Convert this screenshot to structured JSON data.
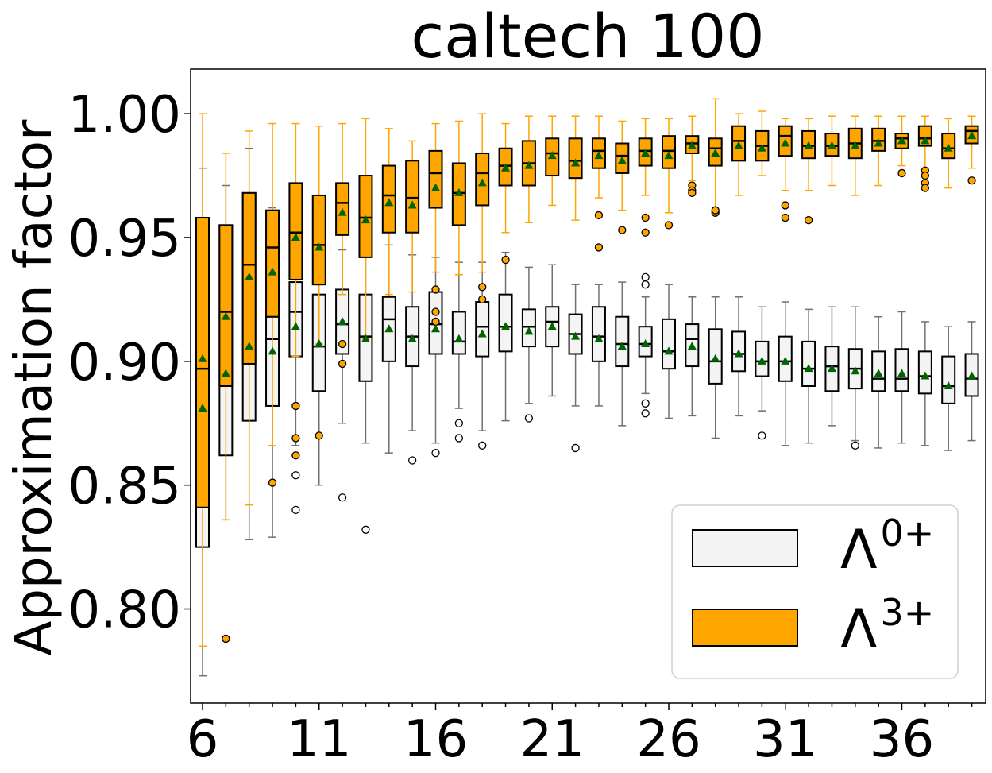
{
  "chart_data": {
    "type": "box",
    "title": "caltech 100",
    "xlabel": "",
    "ylabel": "Approximation factor",
    "ylim": [
      0.762,
      1.018
    ],
    "yticks": [
      0.8,
      0.85,
      0.9,
      0.95,
      1.0
    ],
    "ytick_labels": [
      "0.80",
      "0.85",
      "0.90",
      "0.95",
      "1.00"
    ],
    "x": [
      6,
      7,
      8,
      9,
      10,
      11,
      12,
      13,
      14,
      15,
      16,
      17,
      18,
      19,
      20,
      21,
      22,
      23,
      24,
      25,
      26,
      27,
      28,
      29,
      30,
      31,
      32,
      33,
      34,
      35,
      36,
      37,
      38,
      39
    ],
    "xticks": [
      6,
      11,
      16,
      21,
      26,
      31,
      36
    ],
    "xtick_labels": [
      "6",
      "11",
      "16",
      "21",
      "26",
      "31",
      "36"
    ],
    "legend_position": "lower right",
    "colors": {
      "lambda0": "#f4f4f4",
      "lambda3": "#ffa500",
      "mean_marker": "#006400",
      "lambda0_whisker": "#707070",
      "lambda3_whisker": "#ffa500"
    },
    "series": [
      {
        "name": "Λ⁰⁺",
        "legend_base": "Λ",
        "legend_sup": "0+",
        "stats": [
          {
            "lo": 0.773,
            "q1": 0.825,
            "med": 0.887,
            "q3": 0.958,
            "hi": 0.978,
            "mean": 0.881,
            "fliers": []
          },
          {
            "lo": 0.836,
            "q1": 0.862,
            "med": 0.901,
            "q3": 0.955,
            "hi": 0.971,
            "mean": 0.895,
            "fliers": []
          },
          {
            "lo": 0.828,
            "q1": 0.876,
            "med": 0.916,
            "q3": 0.968,
            "hi": 0.986,
            "mean": 0.906,
            "fliers": []
          },
          {
            "lo": 0.829,
            "q1": 0.882,
            "med": 0.909,
            "q3": 0.918,
            "hi": 0.962,
            "mean": 0.904,
            "fliers": []
          },
          {
            "lo": 0.866,
            "q1": 0.902,
            "med": 0.92,
            "q3": 0.932,
            "hi": 0.952,
            "mean": 0.914,
            "fliers": [
              0.854,
              0.84
            ]
          },
          {
            "lo": 0.85,
            "q1": 0.888,
            "med": 0.906,
            "q3": 0.927,
            "hi": 0.946,
            "mean": 0.907,
            "fliers": []
          },
          {
            "lo": 0.875,
            "q1": 0.903,
            "med": 0.915,
            "q3": 0.929,
            "hi": 0.945,
            "mean": 0.916,
            "fliers": [
              0.845
            ]
          },
          {
            "lo": 0.867,
            "q1": 0.892,
            "med": 0.91,
            "q3": 0.927,
            "hi": 0.947,
            "mean": 0.909,
            "fliers": [
              0.832
            ]
          },
          {
            "lo": 0.863,
            "q1": 0.9,
            "med": 0.917,
            "q3": 0.926,
            "hi": 0.947,
            "mean": 0.913,
            "fliers": []
          },
          {
            "lo": 0.872,
            "q1": 0.898,
            "med": 0.91,
            "q3": 0.922,
            "hi": 0.943,
            "mean": 0.909,
            "fliers": [
              0.86
            ]
          },
          {
            "lo": 0.867,
            "q1": 0.903,
            "med": 0.915,
            "q3": 0.928,
            "hi": 0.942,
            "mean": 0.913,
            "fliers": [
              0.863
            ]
          },
          {
            "lo": 0.881,
            "q1": 0.903,
            "med": 0.908,
            "q3": 0.92,
            "hi": 0.94,
            "mean": 0.909,
            "fliers": [
              0.875,
              0.869
            ]
          },
          {
            "lo": 0.872,
            "q1": 0.902,
            "med": 0.914,
            "q3": 0.924,
            "hi": 0.94,
            "mean": 0.911,
            "fliers": [
              0.866
            ]
          },
          {
            "lo": 0.876,
            "q1": 0.904,
            "med": 0.914,
            "q3": 0.927,
            "hi": 0.944,
            "mean": 0.914,
            "fliers": []
          },
          {
            "lo": 0.883,
            "q1": 0.906,
            "med": 0.914,
            "q3": 0.921,
            "hi": 0.938,
            "mean": 0.912,
            "fliers": [
              0.877
            ]
          },
          {
            "lo": 0.886,
            "q1": 0.906,
            "med": 0.916,
            "q3": 0.922,
            "hi": 0.939,
            "mean": 0.914,
            "fliers": []
          },
          {
            "lo": 0.882,
            "q1": 0.903,
            "med": 0.911,
            "q3": 0.919,
            "hi": 0.931,
            "mean": 0.91,
            "fliers": [
              0.865
            ]
          },
          {
            "lo": 0.882,
            "q1": 0.9,
            "med": 0.91,
            "q3": 0.922,
            "hi": 0.931,
            "mean": 0.909,
            "fliers": []
          },
          {
            "lo": 0.874,
            "q1": 0.898,
            "med": 0.907,
            "q3": 0.918,
            "hi": 0.932,
            "mean": 0.906,
            "fliers": []
          },
          {
            "lo": 0.887,
            "q1": 0.902,
            "med": 0.907,
            "q3": 0.914,
            "hi": 0.926,
            "mean": 0.907,
            "fliers": [
              0.934,
              0.931,
              0.883,
              0.879
            ]
          },
          {
            "lo": 0.877,
            "q1": 0.897,
            "med": 0.904,
            "q3": 0.917,
            "hi": 0.931,
            "mean": 0.904,
            "fliers": []
          },
          {
            "lo": 0.878,
            "q1": 0.898,
            "med": 0.909,
            "q3": 0.915,
            "hi": 0.926,
            "mean": 0.906,
            "fliers": []
          },
          {
            "lo": 0.869,
            "q1": 0.891,
            "med": 0.9,
            "q3": 0.913,
            "hi": 0.926,
            "mean": 0.901,
            "fliers": []
          },
          {
            "lo": 0.878,
            "q1": 0.896,
            "med": 0.903,
            "q3": 0.912,
            "hi": 0.926,
            "mean": 0.903,
            "fliers": []
          },
          {
            "lo": 0.88,
            "q1": 0.894,
            "med": 0.9,
            "q3": 0.908,
            "hi": 0.922,
            "mean": 0.9,
            "fliers": [
              0.87
            ]
          },
          {
            "lo": 0.866,
            "q1": 0.892,
            "med": 0.9,
            "q3": 0.91,
            "hi": 0.924,
            "mean": 0.9,
            "fliers": []
          },
          {
            "lo": 0.867,
            "q1": 0.89,
            "med": 0.897,
            "q3": 0.908,
            "hi": 0.921,
            "mean": 0.897,
            "fliers": []
          },
          {
            "lo": 0.874,
            "q1": 0.888,
            "med": 0.898,
            "q3": 0.906,
            "hi": 0.922,
            "mean": 0.897,
            "fliers": []
          },
          {
            "lo": 0.868,
            "q1": 0.889,
            "med": 0.897,
            "q3": 0.905,
            "hi": 0.922,
            "mean": 0.896,
            "fliers": [
              0.866
            ]
          },
          {
            "lo": 0.865,
            "q1": 0.888,
            "med": 0.893,
            "q3": 0.904,
            "hi": 0.918,
            "mean": 0.895,
            "fliers": []
          },
          {
            "lo": 0.867,
            "q1": 0.888,
            "med": 0.893,
            "q3": 0.905,
            "hi": 0.92,
            "mean": 0.895,
            "fliers": []
          },
          {
            "lo": 0.866,
            "q1": 0.887,
            "med": 0.894,
            "q3": 0.904,
            "hi": 0.916,
            "mean": 0.894,
            "fliers": []
          },
          {
            "lo": 0.864,
            "q1": 0.883,
            "med": 0.89,
            "q3": 0.902,
            "hi": 0.914,
            "mean": 0.89,
            "fliers": []
          },
          {
            "lo": 0.868,
            "q1": 0.886,
            "med": 0.893,
            "q3": 0.903,
            "hi": 0.916,
            "mean": 0.894,
            "fliers": []
          }
        ]
      },
      {
        "name": "Λ³⁺",
        "legend_base": "Λ",
        "legend_sup": "3+",
        "stats": [
          {
            "lo": 0.785,
            "q1": 0.841,
            "med": 0.897,
            "q3": 0.958,
            "hi": 1.0,
            "mean": 0.901,
            "fliers": []
          },
          {
            "lo": 0.836,
            "q1": 0.89,
            "med": 0.92,
            "q3": 0.955,
            "hi": 0.984,
            "mean": 0.918,
            "fliers": [
              0.788
            ]
          },
          {
            "lo": 0.842,
            "q1": 0.899,
            "med": 0.939,
            "q3": 0.968,
            "hi": 0.993,
            "mean": 0.934,
            "fliers": []
          },
          {
            "lo": 0.866,
            "q1": 0.918,
            "med": 0.946,
            "q3": 0.961,
            "hi": 0.996,
            "mean": 0.936,
            "fliers": [
              0.851
            ]
          },
          {
            "lo": 0.902,
            "q1": 0.933,
            "med": 0.952,
            "q3": 0.972,
            "hi": 0.996,
            "mean": 0.95,
            "fliers": [
              0.882,
              0.869,
              0.862
            ]
          },
          {
            "lo": 0.907,
            "q1": 0.931,
            "med": 0.947,
            "q3": 0.967,
            "hi": 0.995,
            "mean": 0.946,
            "fliers": [
              0.87
            ]
          },
          {
            "lo": 0.927,
            "q1": 0.951,
            "med": 0.964,
            "q3": 0.972,
            "hi": 0.996,
            "mean": 0.96,
            "fliers": [
              0.907,
              0.899
            ]
          },
          {
            "lo": 0.909,
            "q1": 0.942,
            "med": 0.958,
            "q3": 0.975,
            "hi": 0.998,
            "mean": 0.957,
            "fliers": []
          },
          {
            "lo": 0.927,
            "q1": 0.952,
            "med": 0.967,
            "q3": 0.979,
            "hi": 0.994,
            "mean": 0.964,
            "fliers": []
          },
          {
            "lo": 0.928,
            "q1": 0.952,
            "med": 0.966,
            "q3": 0.981,
            "hi": 0.989,
            "mean": 0.963,
            "fliers": []
          },
          {
            "lo": 0.936,
            "q1": 0.962,
            "med": 0.976,
            "q3": 0.985,
            "hi": 0.996,
            "mean": 0.97,
            "fliers": [
              0.929,
              0.92,
              0.916
            ]
          },
          {
            "lo": 0.935,
            "q1": 0.955,
            "med": 0.968,
            "q3": 0.98,
            "hi": 0.997,
            "mean": 0.968,
            "fliers": []
          },
          {
            "lo": 0.936,
            "q1": 0.963,
            "med": 0.976,
            "q3": 0.984,
            "hi": 1.0,
            "mean": 0.972,
            "fliers": [
              0.93,
              0.925
            ]
          },
          {
            "lo": 0.952,
            "q1": 0.971,
            "med": 0.979,
            "q3": 0.986,
            "hi": 0.996,
            "mean": 0.978,
            "fliers": [
              0.941
            ]
          },
          {
            "lo": 0.956,
            "q1": 0.971,
            "med": 0.98,
            "q3": 0.989,
            "hi": 0.999,
            "mean": 0.979,
            "fliers": []
          },
          {
            "lo": 0.963,
            "q1": 0.975,
            "med": 0.984,
            "q3": 0.99,
            "hi": 0.999,
            "mean": 0.983,
            "fliers": []
          },
          {
            "lo": 0.957,
            "q1": 0.974,
            "med": 0.981,
            "q3": 0.99,
            "hi": 0.999,
            "mean": 0.98,
            "fliers": []
          },
          {
            "lo": 0.966,
            "q1": 0.978,
            "med": 0.985,
            "q3": 0.99,
            "hi": 0.999,
            "mean": 0.983,
            "fliers": [
              0.959,
              0.946
            ]
          },
          {
            "lo": 0.961,
            "q1": 0.976,
            "med": 0.983,
            "q3": 0.988,
            "hi": 0.997,
            "mean": 0.981,
            "fliers": [
              0.953
            ]
          },
          {
            "lo": 0.967,
            "q1": 0.979,
            "med": 0.985,
            "q3": 0.99,
            "hi": 0.998,
            "mean": 0.984,
            "fliers": [
              0.958,
              0.952
            ]
          },
          {
            "lo": 0.96,
            "q1": 0.978,
            "med": 0.985,
            "q3": 0.991,
            "hi": 0.998,
            "mean": 0.983,
            "fliers": [
              0.955
            ]
          },
          {
            "lo": 0.973,
            "q1": 0.984,
            "med": 0.988,
            "q3": 0.991,
            "hi": 0.999,
            "mean": 0.987,
            "fliers": [
              0.971,
              0.969,
              0.968
            ]
          },
          {
            "lo": 0.961,
            "q1": 0.979,
            "med": 0.986,
            "q3": 0.99,
            "hi": 1.006,
            "mean": 0.984,
            "fliers": [
              0.96,
              0.961
            ]
          },
          {
            "lo": 0.967,
            "q1": 0.981,
            "med": 0.989,
            "q3": 0.995,
            "hi": 1.0,
            "mean": 0.987,
            "fliers": []
          },
          {
            "lo": 0.975,
            "q1": 0.981,
            "med": 0.987,
            "q3": 0.993,
            "hi": 1.001,
            "mean": 0.986,
            "fliers": []
          },
          {
            "lo": 0.969,
            "q1": 0.983,
            "med": 0.991,
            "q3": 0.995,
            "hi": 0.998,
            "mean": 0.988,
            "fliers": [
              0.963,
              0.958
            ]
          },
          {
            "lo": 0.969,
            "q1": 0.982,
            "med": 0.987,
            "q3": 0.993,
            "hi": 0.998,
            "mean": 0.987,
            "fliers": [
              0.957
            ]
          },
          {
            "lo": 0.971,
            "q1": 0.983,
            "med": 0.987,
            "q3": 0.992,
            "hi": 0.999,
            "mean": 0.987,
            "fliers": []
          },
          {
            "lo": 0.967,
            "q1": 0.982,
            "med": 0.988,
            "q3": 0.994,
            "hi": 0.999,
            "mean": 0.987,
            "fliers": []
          },
          {
            "lo": 0.971,
            "q1": 0.985,
            "med": 0.989,
            "q3": 0.994,
            "hi": 0.999,
            "mean": 0.988,
            "fliers": []
          },
          {
            "lo": 0.979,
            "q1": 0.986,
            "med": 0.99,
            "q3": 0.992,
            "hi": 0.999,
            "mean": 0.989,
            "fliers": [
              0.976
            ]
          },
          {
            "lo": 0.975,
            "q1": 0.987,
            "med": 0.99,
            "q3": 0.995,
            "hi": 0.999,
            "mean": 0.989,
            "fliers": [
              0.977,
              0.975,
              0.972,
              0.97
            ]
          },
          {
            "lo": 0.97,
            "q1": 0.982,
            "med": 0.986,
            "q3": 0.992,
            "hi": 0.998,
            "mean": 0.986,
            "fliers": []
          },
          {
            "lo": 0.978,
            "q1": 0.988,
            "med": 0.993,
            "q3": 0.995,
            "hi": 0.999,
            "mean": 0.991,
            "fliers": [
              0.973
            ]
          }
        ]
      }
    ]
  }
}
